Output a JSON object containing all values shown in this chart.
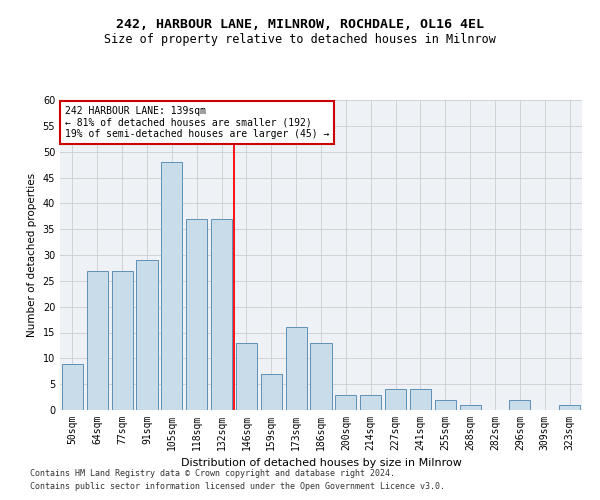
{
  "title1": "242, HARBOUR LANE, MILNROW, ROCHDALE, OL16 4EL",
  "title2": "Size of property relative to detached houses in Milnrow",
  "xlabel": "Distribution of detached houses by size in Milnrow",
  "ylabel": "Number of detached properties",
  "categories": [
    "50sqm",
    "64sqm",
    "77sqm",
    "91sqm",
    "105sqm",
    "118sqm",
    "132sqm",
    "146sqm",
    "159sqm",
    "173sqm",
    "186sqm",
    "200sqm",
    "214sqm",
    "227sqm",
    "241sqm",
    "255sqm",
    "268sqm",
    "282sqm",
    "296sqm",
    "309sqm",
    "323sqm"
  ],
  "values": [
    9,
    27,
    27,
    29,
    48,
    37,
    37,
    13,
    7,
    16,
    13,
    3,
    3,
    4,
    4,
    2,
    1,
    0,
    2,
    0,
    1
  ],
  "bar_color": "#c8dcea",
  "bar_edge_color": "#6090b8",
  "red_line_index": 7,
  "annotation_title": "242 HARBOUR LANE: 139sqm",
  "annotation_line1": "← 81% of detached houses are smaller (192)",
  "annotation_line2": "19% of semi-detached houses are larger (45) →",
  "annotation_box_color": "#ffffff",
  "annotation_box_edge": "#cc0000",
  "ylim": [
    0,
    60
  ],
  "yticks": [
    0,
    5,
    10,
    15,
    20,
    25,
    30,
    35,
    40,
    45,
    50,
    55,
    60
  ],
  "grid_color": "#cccccc",
  "bg_color": "#eef2f7",
  "footer1": "Contains HM Land Registry data © Crown copyright and database right 2024.",
  "footer2": "Contains public sector information licensed under the Open Government Licence v3.0.",
  "title1_fontsize": 9.5,
  "title2_fontsize": 8.5,
  "xlabel_fontsize": 8,
  "ylabel_fontsize": 7.5,
  "tick_fontsize": 7,
  "footer_fontsize": 6
}
